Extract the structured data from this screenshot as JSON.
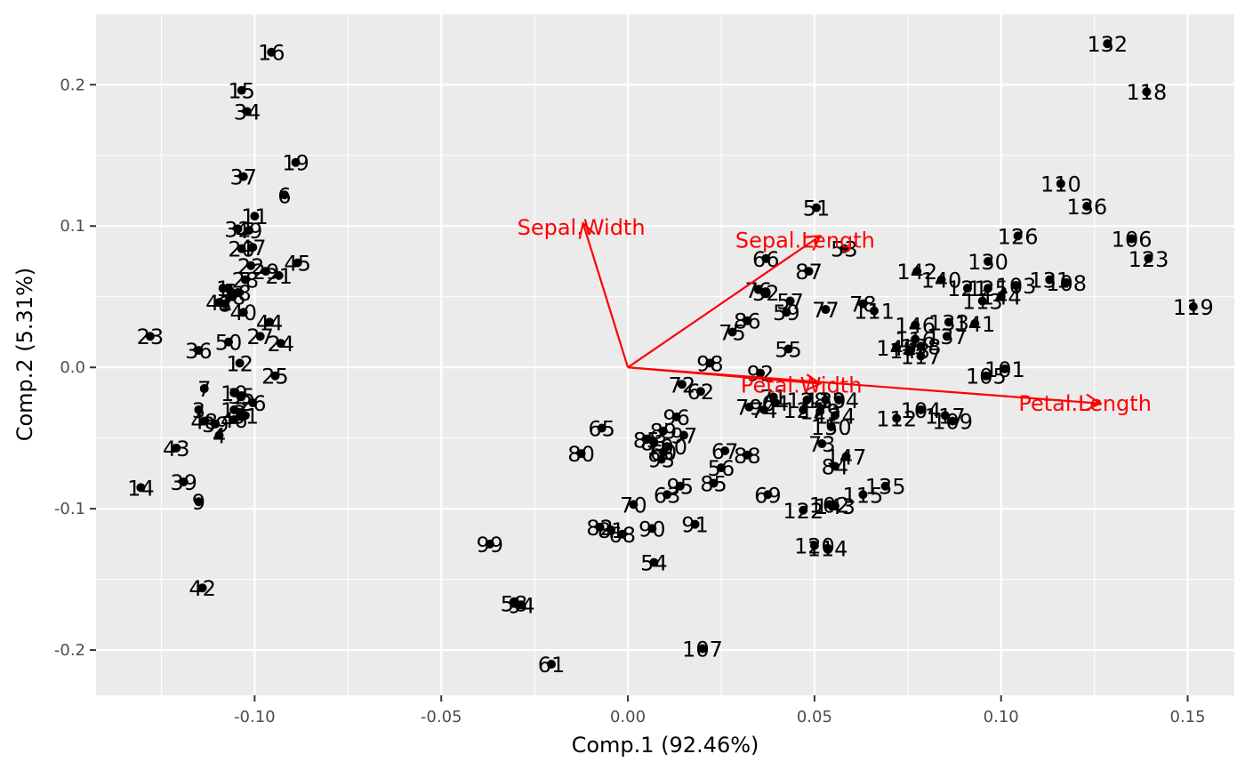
{
  "chart_data": {
    "type": "scatter",
    "title": "",
    "xlabel": "Comp.1 (92.46%)",
    "ylabel": "Comp.2 (5.31%)",
    "xlim": [
      -0.1425,
      0.1625
    ],
    "ylim": [
      -0.232,
      0.2505
    ],
    "x_ticks": [
      -0.1,
      -0.05,
      0.0,
      0.05,
      0.1,
      0.15
    ],
    "x_tick_labels": [
      "-0.10",
      "-0.05",
      "0.00",
      "0.05",
      "0.10",
      "0.15"
    ],
    "y_ticks": [
      -0.2,
      -0.1,
      0.0,
      0.1,
      0.2
    ],
    "y_tick_labels": [
      "-0.2",
      "-0.1",
      "0.0",
      "0.1",
      "0.2"
    ],
    "grid": true,
    "panel_background": "#ebebeb",
    "grid_color": "#ffffff",
    "point_color": "#000000",
    "points": [
      {
        "label": "16",
        "x": -0.0955,
        "y": 0.223
      },
      {
        "label": "15",
        "x": -0.1035,
        "y": 0.196
      },
      {
        "label": "34",
        "x": -0.102,
        "y": 0.181
      },
      {
        "label": "19",
        "x": -0.089,
        "y": 0.145
      },
      {
        "label": "37",
        "x": -0.103,
        "y": 0.135
      },
      {
        "label": "6",
        "x": -0.092,
        "y": 0.122
      },
      {
        "label": "11",
        "x": -0.1,
        "y": 0.107
      },
      {
        "label": "32",
        "x": -0.1045,
        "y": 0.098
      },
      {
        "label": "49",
        "x": -0.1015,
        "y": 0.097
      },
      {
        "label": "47",
        "x": -0.1005,
        "y": 0.085
      },
      {
        "label": "20",
        "x": -0.1035,
        "y": 0.084
      },
      {
        "label": "22",
        "x": -0.101,
        "y": 0.072
      },
      {
        "label": "45",
        "x": -0.0885,
        "y": 0.074
      },
      {
        "label": "21",
        "x": -0.0935,
        "y": 0.065
      },
      {
        "label": "28",
        "x": -0.1025,
        "y": 0.062
      },
      {
        "label": "29",
        "x": -0.097,
        "y": 0.068
      },
      {
        "label": "1",
        "x": -0.1085,
        "y": 0.056
      },
      {
        "label": "5",
        "x": -0.1065,
        "y": 0.054
      },
      {
        "label": "18",
        "x": -0.1045,
        "y": 0.053
      },
      {
        "label": "38",
        "x": -0.106,
        "y": 0.05
      },
      {
        "label": "41",
        "x": -0.1095,
        "y": 0.046
      },
      {
        "label": "8",
        "x": -0.108,
        "y": 0.045
      },
      {
        "label": "40",
        "x": -0.103,
        "y": 0.039
      },
      {
        "label": "44",
        "x": -0.096,
        "y": 0.032
      },
      {
        "label": "23",
        "x": -0.128,
        "y": 0.022
      },
      {
        "label": "27",
        "x": -0.0985,
        "y": 0.022
      },
      {
        "label": "24",
        "x": -0.093,
        "y": 0.017
      },
      {
        "label": "50",
        "x": -0.107,
        "y": 0.018
      },
      {
        "label": "36",
        "x": -0.115,
        "y": 0.012
      },
      {
        "label": "12",
        "x": -0.104,
        "y": 0.003
      },
      {
        "label": "25",
        "x": -0.0945,
        "y": -0.006
      },
      {
        "label": "7",
        "x": -0.1135,
        "y": -0.015
      },
      {
        "label": "10",
        "x": -0.1055,
        "y": -0.018
      },
      {
        "label": "35",
        "x": -0.1035,
        "y": -0.02
      },
      {
        "label": "26",
        "x": -0.1005,
        "y": -0.025
      },
      {
        "label": "3",
        "x": -0.115,
        "y": -0.03
      },
      {
        "label": "13",
        "x": -0.1055,
        "y": -0.03
      },
      {
        "label": "2",
        "x": -0.104,
        "y": -0.032
      },
      {
        "label": "31",
        "x": -0.1025,
        "y": -0.034
      },
      {
        "label": "46",
        "x": -0.1055,
        "y": -0.037
      },
      {
        "label": "48",
        "x": -0.1135,
        "y": -0.038
      },
      {
        "label": "39",
        "x": -0.1105,
        "y": -0.04
      },
      {
        "label": "4",
        "x": -0.1095,
        "y": -0.048
      },
      {
        "label": "43",
        "x": -0.121,
        "y": -0.057
      },
      {
        "label": "14",
        "x": -0.1305,
        "y": -0.085
      },
      {
        "label": "39",
        "x": -0.119,
        "y": -0.081
      },
      {
        "label": "9",
        "x": -0.115,
        "y": -0.095
      },
      {
        "label": "42",
        "x": -0.114,
        "y": -0.156
      },
      {
        "label": "132",
        "x": 0.1285,
        "y": 0.229
      },
      {
        "label": "118",
        "x": 0.139,
        "y": 0.195
      },
      {
        "label": "110",
        "x": 0.116,
        "y": 0.13
      },
      {
        "label": "136",
        "x": 0.123,
        "y": 0.114
      },
      {
        "label": "51",
        "x": 0.0505,
        "y": 0.113
      },
      {
        "label": "106",
        "x": 0.135,
        "y": 0.091
      },
      {
        "label": "126",
        "x": 0.1045,
        "y": 0.093
      },
      {
        "label": "53",
        "x": 0.058,
        "y": 0.084
      },
      {
        "label": "123",
        "x": 0.1395,
        "y": 0.077
      },
      {
        "label": "66",
        "x": 0.037,
        "y": 0.077
      },
      {
        "label": "130",
        "x": 0.0965,
        "y": 0.075
      },
      {
        "label": "87",
        "x": 0.0485,
        "y": 0.068
      },
      {
        "label": "142",
        "x": 0.0775,
        "y": 0.068
      },
      {
        "label": "140",
        "x": 0.084,
        "y": 0.062
      },
      {
        "label": "131",
        "x": 0.113,
        "y": 0.062
      },
      {
        "label": "103",
        "x": 0.104,
        "y": 0.058
      },
      {
        "label": "108",
        "x": 0.1175,
        "y": 0.06
      },
      {
        "label": "121",
        "x": 0.091,
        "y": 0.056
      },
      {
        "label": "125",
        "x": 0.0965,
        "y": 0.056
      },
      {
        "label": "76",
        "x": 0.035,
        "y": 0.055
      },
      {
        "label": "52",
        "x": 0.037,
        "y": 0.053
      },
      {
        "label": "57",
        "x": 0.0435,
        "y": 0.047
      },
      {
        "label": "144",
        "x": 0.1,
        "y": 0.05
      },
      {
        "label": "113",
        "x": 0.095,
        "y": 0.047
      },
      {
        "label": "78",
        "x": 0.063,
        "y": 0.045
      },
      {
        "label": "77",
        "x": 0.053,
        "y": 0.041
      },
      {
        "label": "111",
        "x": 0.066,
        "y": 0.04
      },
      {
        "label": "59",
        "x": 0.0425,
        "y": 0.039
      },
      {
        "label": "119",
        "x": 0.1515,
        "y": 0.043
      },
      {
        "label": "86",
        "x": 0.032,
        "y": 0.033
      },
      {
        "label": "141",
        "x": 0.093,
        "y": 0.031
      },
      {
        "label": "146",
        "x": 0.077,
        "y": 0.03
      },
      {
        "label": "133",
        "x": 0.086,
        "y": 0.032
      },
      {
        "label": "75",
        "x": 0.028,
        "y": 0.025
      },
      {
        "label": "137",
        "x": 0.0855,
        "y": 0.022
      },
      {
        "label": "116",
        "x": 0.077,
        "y": 0.02
      },
      {
        "label": "138",
        "x": 0.0785,
        "y": 0.015
      },
      {
        "label": "149",
        "x": 0.072,
        "y": 0.014
      },
      {
        "label": "148",
        "x": 0.0755,
        "y": 0.012
      },
      {
        "label": "55",
        "x": 0.043,
        "y": 0.013
      },
      {
        "label": "117",
        "x": 0.0785,
        "y": 0.008
      },
      {
        "label": "98",
        "x": 0.022,
        "y": 0.003
      },
      {
        "label": "92",
        "x": 0.0355,
        "y": -0.004
      },
      {
        "label": "101",
        "x": 0.101,
        "y": -0.001
      },
      {
        "label": "105",
        "x": 0.096,
        "y": -0.006
      },
      {
        "label": "72",
        "x": 0.0145,
        "y": -0.012
      },
      {
        "label": "62",
        "x": 0.0195,
        "y": -0.017
      },
      {
        "label": "71",
        "x": 0.039,
        "y": -0.021
      },
      {
        "label": "128",
        "x": 0.048,
        "y": -0.023
      },
      {
        "label": "139",
        "x": 0.053,
        "y": -0.023
      },
      {
        "label": "134",
        "x": 0.0565,
        "y": -0.023
      },
      {
        "label": "79",
        "x": 0.0325,
        "y": -0.028
      },
      {
        "label": "74",
        "x": 0.0365,
        "y": -0.03
      },
      {
        "label": "64",
        "x": 0.0395,
        "y": -0.025
      },
      {
        "label": "127",
        "x": 0.047,
        "y": -0.03
      },
      {
        "label": "129",
        "x": 0.0515,
        "y": -0.031
      },
      {
        "label": "124",
        "x": 0.0555,
        "y": -0.034
      },
      {
        "label": "104",
        "x": 0.0785,
        "y": -0.03
      },
      {
        "label": "112",
        "x": 0.072,
        "y": -0.036
      },
      {
        "label": "150",
        "x": 0.0545,
        "y": -0.042
      },
      {
        "label": "117",
        "x": 0.085,
        "y": -0.034
      },
      {
        "label": "109",
        "x": 0.087,
        "y": -0.038
      },
      {
        "label": "96",
        "x": 0.013,
        "y": -0.035
      },
      {
        "label": "65",
        "x": -0.007,
        "y": -0.043
      },
      {
        "label": "89",
        "x": 0.0095,
        "y": -0.045
      },
      {
        "label": "97",
        "x": 0.015,
        "y": -0.048
      },
      {
        "label": "85",
        "x": 0.005,
        "y": -0.051
      },
      {
        "label": "83",
        "x": 0.007,
        "y": -0.053
      },
      {
        "label": "100",
        "x": 0.0105,
        "y": -0.056
      },
      {
        "label": "60",
        "x": 0.0095,
        "y": -0.06
      },
      {
        "label": "93",
        "x": 0.009,
        "y": -0.065
      },
      {
        "label": "73",
        "x": 0.052,
        "y": -0.054
      },
      {
        "label": "147",
        "x": 0.0585,
        "y": -0.063
      },
      {
        "label": "80",
        "x": -0.0125,
        "y": -0.061
      },
      {
        "label": "67",
        "x": 0.026,
        "y": -0.059
      },
      {
        "label": "88",
        "x": 0.032,
        "y": -0.062
      },
      {
        "label": "84",
        "x": 0.0555,
        "y": -0.07
      },
      {
        "label": "56",
        "x": 0.025,
        "y": -0.071
      },
      {
        "label": "95",
        "x": 0.014,
        "y": -0.084
      },
      {
        "label": "85",
        "x": 0.023,
        "y": -0.082
      },
      {
        "label": "63",
        "x": 0.0105,
        "y": -0.09
      },
      {
        "label": "135",
        "x": 0.069,
        "y": -0.084
      },
      {
        "label": "69",
        "x": 0.0375,
        "y": -0.09
      },
      {
        "label": "115",
        "x": 0.063,
        "y": -0.09
      },
      {
        "label": "102",
        "x": 0.054,
        "y": -0.097
      },
      {
        "label": "143",
        "x": 0.0555,
        "y": -0.098
      },
      {
        "label": "122",
        "x": 0.047,
        "y": -0.101
      },
      {
        "label": "70",
        "x": 0.0015,
        "y": -0.097
      },
      {
        "label": "91",
        "x": 0.018,
        "y": -0.111
      },
      {
        "label": "82",
        "x": -0.0075,
        "y": -0.113
      },
      {
        "label": "81",
        "x": -0.0045,
        "y": -0.115
      },
      {
        "label": "90",
        "x": 0.0065,
        "y": -0.114
      },
      {
        "label": "68",
        "x": -0.0015,
        "y": -0.118
      },
      {
        "label": "99",
        "x": -0.037,
        "y": -0.125
      },
      {
        "label": "120",
        "x": 0.05,
        "y": -0.126
      },
      {
        "label": "114",
        "x": 0.0535,
        "y": -0.128
      },
      {
        "label": "54",
        "x": 0.007,
        "y": -0.138
      },
      {
        "label": "58",
        "x": -0.0305,
        "y": -0.167
      },
      {
        "label": "94",
        "x": -0.0285,
        "y": -0.168
      },
      {
        "label": "107",
        "x": 0.02,
        "y": -0.199
      },
      {
        "label": "61",
        "x": -0.0205,
        "y": -0.21
      }
    ],
    "loadings": [
      {
        "label": "Sepal.Width",
        "x": -0.012,
        "y": 0.102,
        "label_x": -0.0125,
        "label_y": 0.0995
      },
      {
        "label": "Sepal.Length",
        "x": 0.0515,
        "y": 0.093,
        "label_x": 0.0475,
        "label_y": 0.0905
      },
      {
        "label": "Petal.Width",
        "x": 0.0515,
        "y": -0.0115,
        "label_x": 0.0465,
        "label_y": -0.012
      },
      {
        "label": "Petal.Length",
        "x": 0.1265,
        "y": -0.0255,
        "label_x": 0.1225,
        "label_y": -0.025
      }
    ],
    "loading_color": "#ff0000"
  }
}
